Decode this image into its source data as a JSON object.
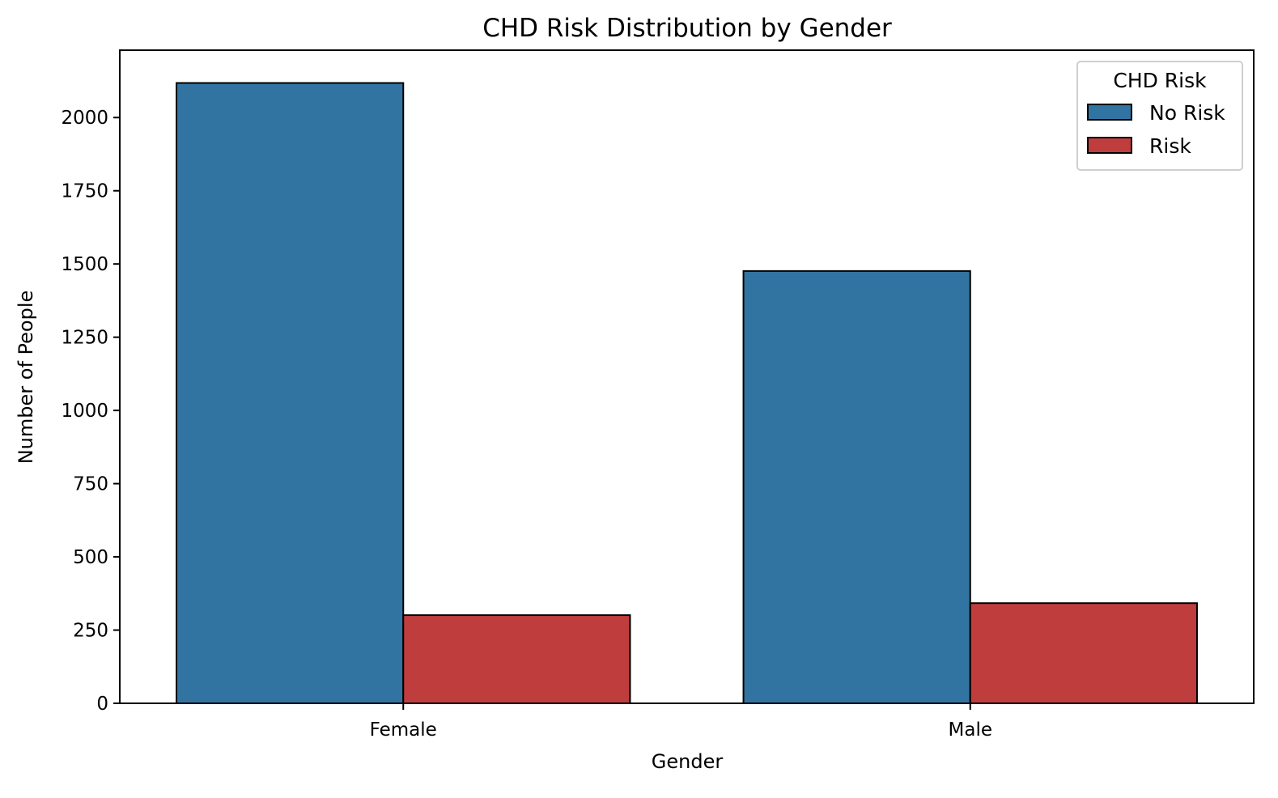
{
  "chart_data": {
    "type": "bar",
    "title": "CHD Risk Distribution by Gender",
    "xlabel": "Gender",
    "ylabel": "Number of People",
    "categories": [
      "Female",
      "Male"
    ],
    "series": [
      {
        "name": "No Risk",
        "values": [
          2118,
          1476
        ],
        "color": "#3274a1"
      },
      {
        "name": "Risk",
        "values": [
          301,
          342
        ],
        "color": "#c03d3e"
      }
    ],
    "ylim": [
      0,
      2230
    ],
    "yticks": [
      0,
      250,
      500,
      750,
      1000,
      1250,
      1500,
      1750,
      2000
    ],
    "grid": false,
    "legend": {
      "title": "CHD Risk",
      "placement": "top-right"
    }
  }
}
